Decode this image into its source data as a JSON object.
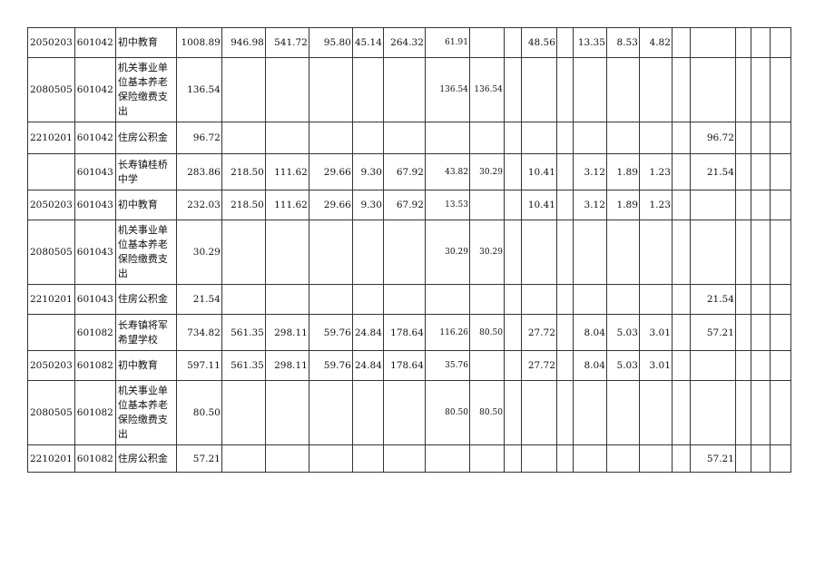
{
  "rows": [
    [
      "2050203",
      "601042",
      "初中教育",
      "1008.89",
      "946.98",
      "541.72",
      "95.80",
      "45.14",
      "264.32",
      "61.91",
      "",
      "",
      "48.56",
      "",
      "13.35",
      "8.53",
      "4.82",
      "",
      "",
      "",
      "",
      ""
    ],
    [
      "2080505",
      "601042",
      "机关事业单位基本养老保险缴费支出",
      "136.54",
      "",
      "",
      "",
      "",
      "",
      "136.54",
      "136.54",
      "",
      "",
      "",
      "",
      "",
      "",
      "",
      "",
      "",
      "",
      ""
    ],
    [
      "2210201",
      "601042",
      "住房公积金",
      "96.72",
      "",
      "",
      "",
      "",
      "",
      "",
      "",
      "",
      "",
      "",
      "",
      "",
      "",
      "",
      "96.72",
      "",
      "",
      ""
    ],
    [
      "",
      "601043",
      "长寿镇桂桥中学",
      "283.86",
      "218.50",
      "111.62",
      "29.66",
      "9.30",
      "67.92",
      "43.82",
      "30.29",
      "",
      "10.41",
      "",
      "3.12",
      "1.89",
      "1.23",
      "",
      "21.54",
      "",
      "",
      ""
    ],
    [
      "2050203",
      "601043",
      "初中教育",
      "232.03",
      "218.50",
      "111.62",
      "29.66",
      "9.30",
      "67.92",
      "13.53",
      "",
      "",
      "10.41",
      "",
      "3.12",
      "1.89",
      "1.23",
      "",
      "",
      "",
      "",
      ""
    ],
    [
      "2080505",
      "601043",
      "机关事业单位基本养老保险缴费支出",
      "30.29",
      "",
      "",
      "",
      "",
      "",
      "30.29",
      "30.29",
      "",
      "",
      "",
      "",
      "",
      "",
      "",
      "",
      "",
      "",
      ""
    ],
    [
      "2210201",
      "601043",
      "住房公积金",
      "21.54",
      "",
      "",
      "",
      "",
      "",
      "",
      "",
      "",
      "",
      "",
      "",
      "",
      "",
      "",
      "21.54",
      "",
      "",
      ""
    ],
    [
      "",
      "601082",
      "长寿镇将军希望学校",
      "734.82",
      "561.35",
      "298.11",
      "59.76",
      "24.84",
      "178.64",
      "116.26",
      "80.50",
      "",
      "27.72",
      "",
      "8.04",
      "5.03",
      "3.01",
      "",
      "57.21",
      "",
      "",
      ""
    ],
    [
      "2050203",
      "601082",
      "初中教育",
      "597.11",
      "561.35",
      "298.11",
      "59.76",
      "24.84",
      "178.64",
      "35.76",
      "",
      "",
      "27.72",
      "",
      "8.04",
      "5.03",
      "3.01",
      "",
      "",
      "",
      "",
      ""
    ],
    [
      "2080505",
      "601082",
      "机关事业单位基本养老保险缴费支出",
      "80.50",
      "",
      "",
      "",
      "",
      "",
      "80.50",
      "80.50",
      "",
      "",
      "",
      "",
      "",
      "",
      "",
      "",
      "",
      "",
      ""
    ],
    [
      "2210201",
      "601082",
      "住房公积金",
      "57.21",
      "",
      "",
      "",
      "",
      "",
      "",
      "",
      "",
      "",
      "",
      "",
      "",
      "",
      "",
      "57.21",
      "",
      "",
      ""
    ]
  ]
}
